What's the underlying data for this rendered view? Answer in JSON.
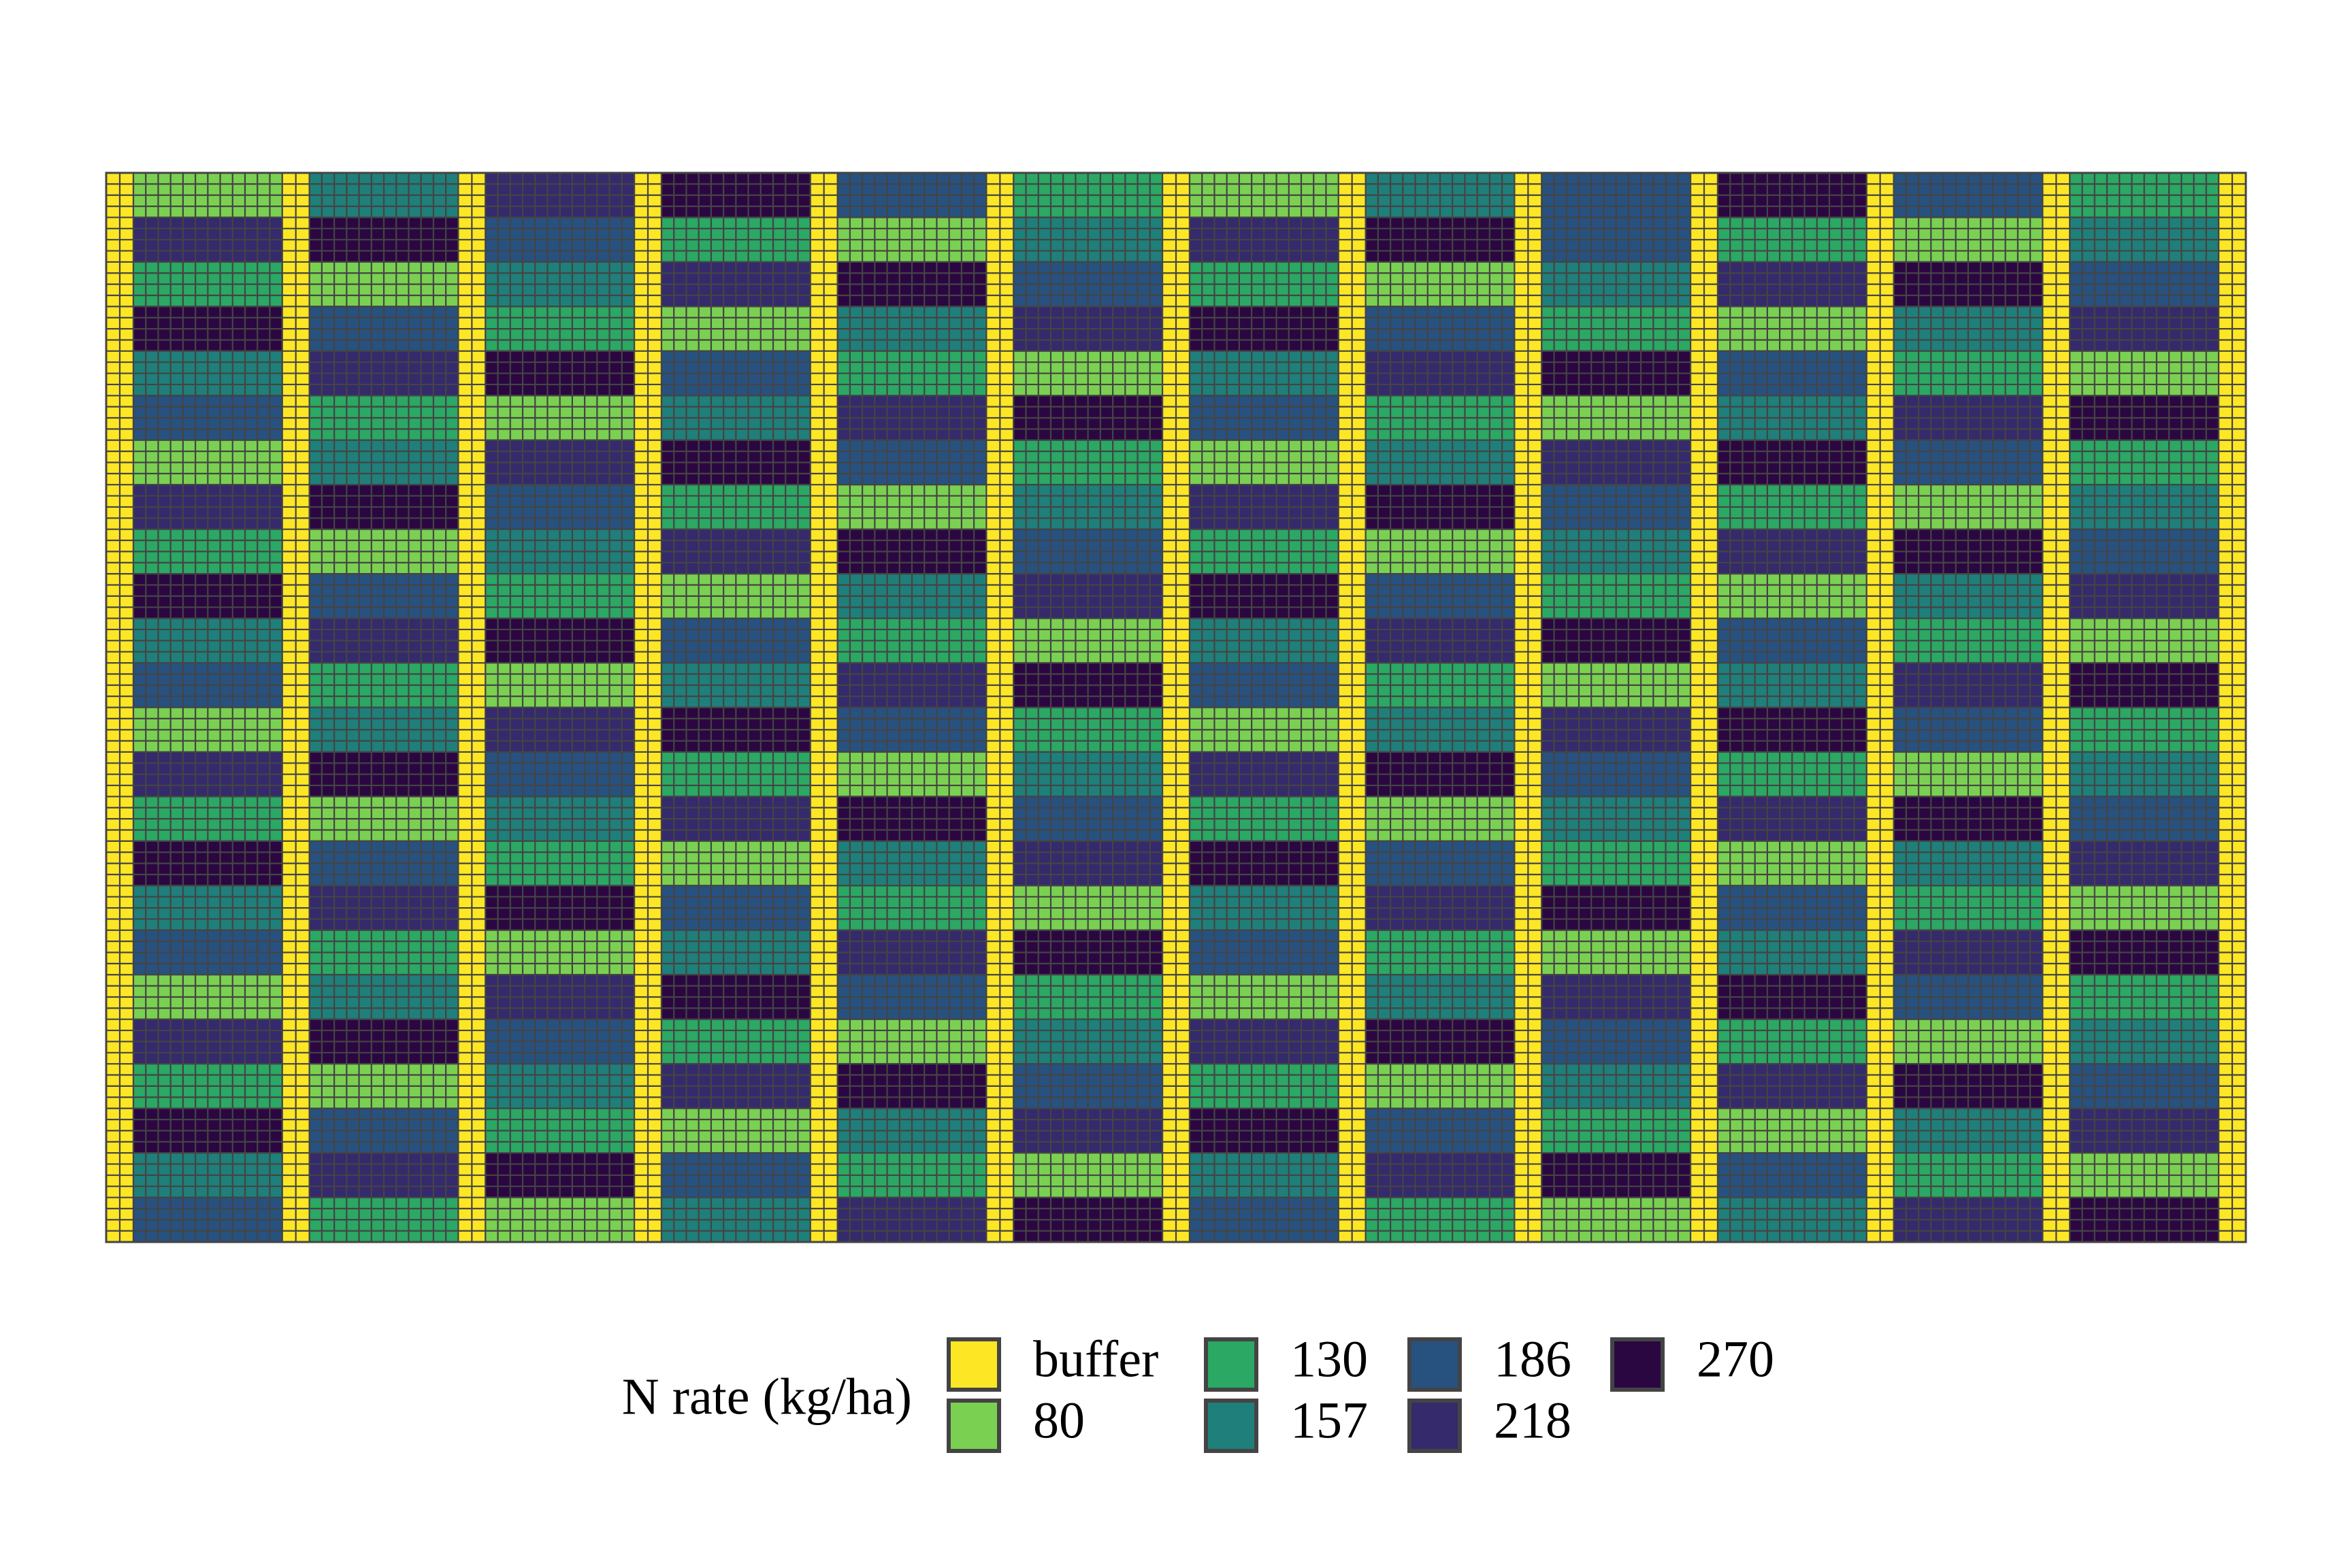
{
  "chart_data": {
    "type": "heatmap",
    "title": "",
    "xlabel": "",
    "ylabel": "",
    "grid": false,
    "legend_position": "bottom",
    "legend": {
      "title": "N rate (kg/ha)",
      "entries": [
        "buffer",
        "80",
        "130",
        "157",
        "186",
        "218",
        "270"
      ]
    },
    "colors": {
      "buffer": "#fde725",
      "80": "#7ad151",
      "130": "#2aa864",
      "157": "#1f7f7a",
      "186": "#27517f",
      "218": "#352a6c",
      "270": "#2b0741",
      "cell_border": "#444444"
    },
    "buffer_columns_between_blocks": true,
    "plot_columns": 12,
    "plot_rows": 24,
    "plot_grid": [
      [
        "80",
        "157",
        "218",
        "270",
        "186",
        "130",
        "80",
        "157",
        "186",
        "270",
        "186",
        "130"
      ],
      [
        "218",
        "270",
        "186",
        "130",
        "80",
        "157",
        "218",
        "270",
        "186",
        "130",
        "80",
        "157"
      ],
      [
        "130",
        "80",
        "157",
        "218",
        "270",
        "186",
        "130",
        "80",
        "157",
        "218",
        "270",
        "186"
      ],
      [
        "270",
        "186",
        "130",
        "80",
        "157",
        "218",
        "270",
        "186",
        "130",
        "80",
        "157",
        "218"
      ],
      [
        "157",
        "218",
        "270",
        "186",
        "130",
        "80",
        "157",
        "218",
        "270",
        "186",
        "130",
        "80"
      ],
      [
        "186",
        "130",
        "80",
        "157",
        "218",
        "270",
        "186",
        "130",
        "80",
        "157",
        "218",
        "270"
      ],
      [
        "80",
        "157",
        "218",
        "270",
        "186",
        "130",
        "80",
        "157",
        "218",
        "270",
        "186",
        "130"
      ],
      [
        "218",
        "270",
        "186",
        "130",
        "80",
        "157",
        "218",
        "270",
        "186",
        "130",
        "80",
        "157"
      ],
      [
        "130",
        "80",
        "157",
        "218",
        "270",
        "186",
        "130",
        "80",
        "157",
        "218",
        "270",
        "186"
      ],
      [
        "270",
        "186",
        "130",
        "80",
        "157",
        "218",
        "270",
        "186",
        "130",
        "80",
        "157",
        "218"
      ],
      [
        "157",
        "218",
        "270",
        "186",
        "130",
        "80",
        "157",
        "218",
        "270",
        "186",
        "130",
        "80"
      ],
      [
        "186",
        "130",
        "80",
        "157",
        "218",
        "270",
        "186",
        "130",
        "80",
        "157",
        "218",
        "270"
      ],
      [
        "80",
        "157",
        "218",
        "270",
        "186",
        "130",
        "80",
        "157",
        "218",
        "270",
        "186",
        "130"
      ],
      [
        "218",
        "270",
        "186",
        "130",
        "80",
        "157",
        "218",
        "270",
        "186",
        "130",
        "80",
        "157"
      ],
      [
        "130",
        "80",
        "157",
        "218",
        "270",
        "186",
        "130",
        "80",
        "157",
        "218",
        "270",
        "186"
      ],
      [
        "270",
        "186",
        "130",
        "80",
        "157",
        "218",
        "270",
        "186",
        "130",
        "80",
        "157",
        "218"
      ],
      [
        "157",
        "218",
        "270",
        "186",
        "130",
        "80",
        "157",
        "218",
        "270",
        "186",
        "130",
        "80"
      ],
      [
        "186",
        "130",
        "80",
        "157",
        "218",
        "270",
        "186",
        "130",
        "80",
        "157",
        "218",
        "270"
      ],
      [
        "80",
        "157",
        "218",
        "270",
        "186",
        "130",
        "80",
        "157",
        "218",
        "270",
        "186",
        "130"
      ],
      [
        "218",
        "270",
        "186",
        "130",
        "80",
        "157",
        "218",
        "270",
        "186",
        "130",
        "80",
        "157"
      ],
      [
        "130",
        "80",
        "157",
        "218",
        "270",
        "186",
        "130",
        "80",
        "157",
        "218",
        "270",
        "186"
      ],
      [
        "270",
        "186",
        "130",
        "80",
        "157",
        "218",
        "270",
        "186",
        "130",
        "80",
        "157",
        "218"
      ],
      [
        "157",
        "218",
        "270",
        "186",
        "130",
        "80",
        "157",
        "218",
        "270",
        "186",
        "130",
        "80"
      ],
      [
        "186",
        "130",
        "80",
        "157",
        "218",
        "270",
        "186",
        "130",
        "80",
        "157",
        "218",
        "270"
      ]
    ]
  }
}
